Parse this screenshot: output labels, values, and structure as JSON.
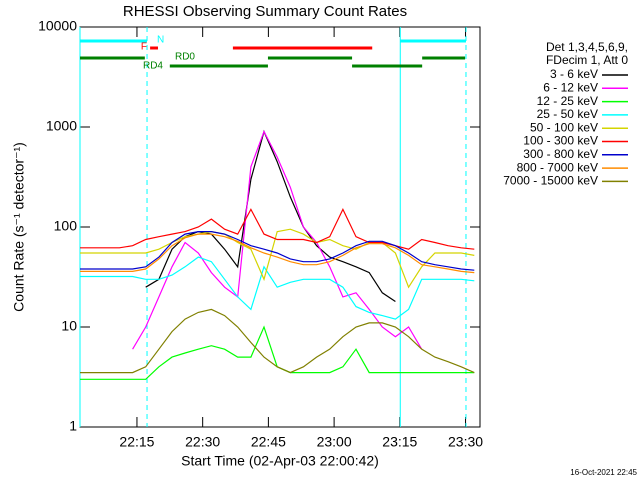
{
  "chart_data": {
    "type": "line",
    "title": "RHESSI Observing Summary Count Rates",
    "xlabel": "Start Time (02-Apr-03 22:00:42)",
    "ylabel": "Count Rate (s⁻¹ detector⁻¹)",
    "ylog": true,
    "legend_header": [
      "Det 1,3,4,5,6,9,",
      "FDecim 1, Att 0"
    ],
    "footer": "16-Oct-2021 22:45",
    "xlim": [
      2,
      93.3
    ],
    "xticks": [
      {
        "value": 15,
        "label": "22:15"
      },
      {
        "value": 30,
        "label": "22:30"
      },
      {
        "value": 45,
        "label": "22:45"
      },
      {
        "value": 60,
        "label": "23:00"
      },
      {
        "value": 75,
        "label": "23:15"
      },
      {
        "value": 90,
        "label": "23:30"
      }
    ],
    "ylim": [
      1,
      10000
    ],
    "yticks": [
      1,
      10,
      100,
      1000,
      10000
    ],
    "x": [
      2,
      5,
      8,
      11,
      14,
      17,
      20,
      23,
      26,
      29,
      32,
      35,
      38,
      41,
      44,
      47,
      50,
      53,
      56,
      59,
      62,
      65,
      68,
      71,
      74,
      77,
      80,
      83,
      86,
      89,
      92
    ],
    "series": [
      {
        "name": "3 - 6 keV",
        "color": "#000000",
        "values": [
          null,
          null,
          null,
          null,
          null,
          25,
          30,
          60,
          80,
          90,
          85,
          60,
          40,
          300,
          900,
          450,
          200,
          100,
          65,
          50,
          45,
          40,
          35,
          22,
          18,
          null,
          null,
          null,
          null,
          null,
          null
        ]
      },
      {
        "name": "6 - 12 keV",
        "color": "#ff00ff",
        "values": [
          null,
          null,
          null,
          null,
          6,
          10,
          20,
          40,
          70,
          55,
          35,
          25,
          20,
          400,
          900,
          500,
          250,
          100,
          70,
          40,
          20,
          22,
          15,
          10,
          8,
          10,
          6,
          null,
          null,
          null,
          null
        ]
      },
      {
        "name": "12 - 25 keV",
        "color": "#00ff00",
        "values": [
          3,
          3,
          3,
          3,
          3,
          3,
          4,
          5,
          5.5,
          6,
          6.5,
          6,
          5,
          5,
          10,
          4,
          3.5,
          3.5,
          3.5,
          3.5,
          4,
          6,
          3.5,
          3.5,
          3.5,
          3.5,
          3.5,
          3.5,
          3.5,
          3.5,
          3.5
        ]
      },
      {
        "name": "25 - 50 keV",
        "color": "#00ffff",
        "values": [
          32,
          32,
          32,
          32,
          32,
          30,
          30,
          33,
          40,
          50,
          45,
          30,
          20,
          15,
          40,
          25,
          28,
          30,
          30,
          30,
          25,
          16,
          14,
          13,
          12,
          15,
          30,
          30,
          30,
          30,
          29
        ]
      },
      {
        "name": "50 - 100 keV",
        "color": "#d4d400",
        "values": [
          55,
          55,
          55,
          55,
          55,
          55,
          60,
          70,
          80,
          85,
          90,
          85,
          70,
          60,
          30,
          90,
          95,
          85,
          70,
          75,
          65,
          60,
          70,
          70,
          55,
          25,
          40,
          55,
          55,
          55,
          52
        ]
      },
      {
        "name": "100 - 300 keV",
        "color": "#ff0000",
        "values": [
          62,
          62,
          62,
          62,
          65,
          75,
          80,
          85,
          90,
          100,
          120,
          95,
          85,
          150,
          85,
          75,
          75,
          75,
          70,
          80,
          150,
          80,
          70,
          70,
          65,
          60,
          75,
          70,
          65,
          62,
          60
        ]
      },
      {
        "name": "300 - 800 keV",
        "color": "#0000cc",
        "values": [
          38,
          38,
          38,
          38,
          38,
          40,
          50,
          70,
          85,
          90,
          90,
          85,
          75,
          65,
          60,
          55,
          48,
          45,
          45,
          48,
          55,
          65,
          72,
          72,
          65,
          55,
          45,
          42,
          40,
          38,
          37
        ]
      },
      {
        "name": "800 - 7000 keV",
        "color": "#ff8c00",
        "values": [
          36,
          36,
          36,
          36,
          36,
          38,
          48,
          65,
          78,
          85,
          85,
          80,
          72,
          62,
          55,
          50,
          45,
          42,
          42,
          45,
          52,
          62,
          68,
          68,
          62,
          52,
          42,
          40,
          38,
          36,
          35
        ]
      },
      {
        "name": "7000 - 15000 keV",
        "color": "#808000",
        "values": [
          3.5,
          3.5,
          3.5,
          3.5,
          3.5,
          4,
          6,
          9,
          12,
          14,
          15,
          13,
          10,
          7,
          5,
          4,
          3.5,
          4,
          5,
          6,
          8,
          10,
          11,
          11,
          10,
          8,
          6,
          5,
          4.5,
          4,
          3.5
        ]
      }
    ],
    "flags": [
      {
        "name": "N",
        "color": "#00ffff",
        "intervals": [
          [
            2,
            17.3
          ],
          [
            75.1,
            90.1
          ]
        ]
      },
      {
        "name": "F",
        "color": "#ff0000",
        "intervals": [
          [
            18,
            19.8
          ],
          [
            36.9,
            68.7
          ]
        ]
      },
      {
        "name": "RD0",
        "color": "#008000",
        "intervals": [
          [
            2,
            16.8
          ],
          [
            44.9,
            64.1
          ],
          [
            80.1,
            89.9
          ]
        ]
      },
      {
        "name": "RD4",
        "color": "#008000",
        "intervals": [
          [
            22.5,
            44.9
          ],
          [
            64.1,
            80.1
          ]
        ]
      }
    ]
  }
}
